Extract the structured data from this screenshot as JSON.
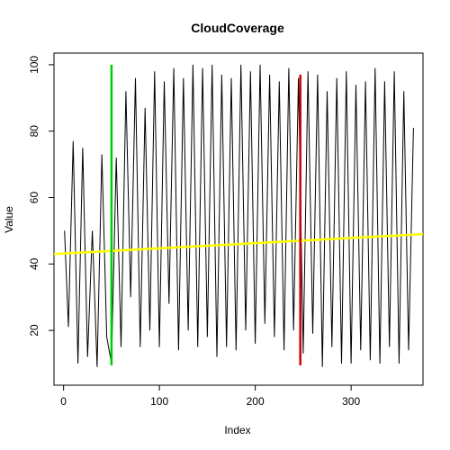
{
  "chart_data": {
    "type": "line",
    "title": "CloudCoverage",
    "xlabel": "Index",
    "ylabel": "Value",
    "xlim": [
      -10,
      375
    ],
    "ylim": [
      3.5,
      103.5
    ],
    "x_ticks": [
      0,
      100,
      200,
      300
    ],
    "y_ticks": [
      20,
      40,
      60,
      80,
      100
    ],
    "grid": false,
    "legend": "none",
    "colors": {
      "series": "#000000",
      "trend": "#ffff00",
      "marker_start": "#00cc00",
      "marker_end": "#cc0000"
    },
    "series": [
      {
        "x": [
          1,
          5,
          10,
          15,
          20,
          25,
          30,
          35,
          40,
          45,
          50,
          55,
          60,
          65,
          70,
          75,
          80,
          85,
          90,
          95,
          100,
          105,
          110,
          115,
          120,
          125,
          130,
          135,
          140,
          145,
          150,
          155,
          160,
          165,
          170,
          175,
          180,
          185,
          190,
          195,
          200,
          205,
          210,
          215,
          220,
          225,
          230,
          235,
          240,
          245,
          250,
          255,
          260,
          265,
          270,
          275,
          280,
          285,
          290,
          295,
          300,
          305,
          310,
          315,
          320,
          325,
          330,
          335,
          340,
          345,
          350,
          355,
          360,
          365
        ],
        "values": [
          50,
          21,
          77,
          10,
          75,
          12,
          50,
          9,
          73,
          18,
          10,
          72,
          15,
          92,
          30,
          96,
          15,
          87,
          20,
          98,
          15,
          95,
          28,
          99,
          14,
          96,
          20,
          100,
          15,
          99,
          18,
          100,
          12,
          97,
          15,
          96,
          14,
          100,
          20,
          98,
          16,
          100,
          22,
          97,
          18,
          95,
          14,
          99,
          20,
          96,
          13,
          98,
          19,
          97,
          9,
          92,
          15,
          96,
          10,
          98,
          10,
          94,
          14,
          95,
          11,
          99,
          10,
          95,
          15,
          98,
          10,
          92,
          14,
          81
        ]
      }
    ],
    "trend_line": {
      "x": [
        -10,
        375
      ],
      "y": [
        43,
        49
      ]
    },
    "markers": [
      {
        "x": 50,
        "y0": 9.5,
        "y1": 100
      },
      {
        "x": 247,
        "y0": 9.5,
        "y1": 97
      }
    ]
  }
}
